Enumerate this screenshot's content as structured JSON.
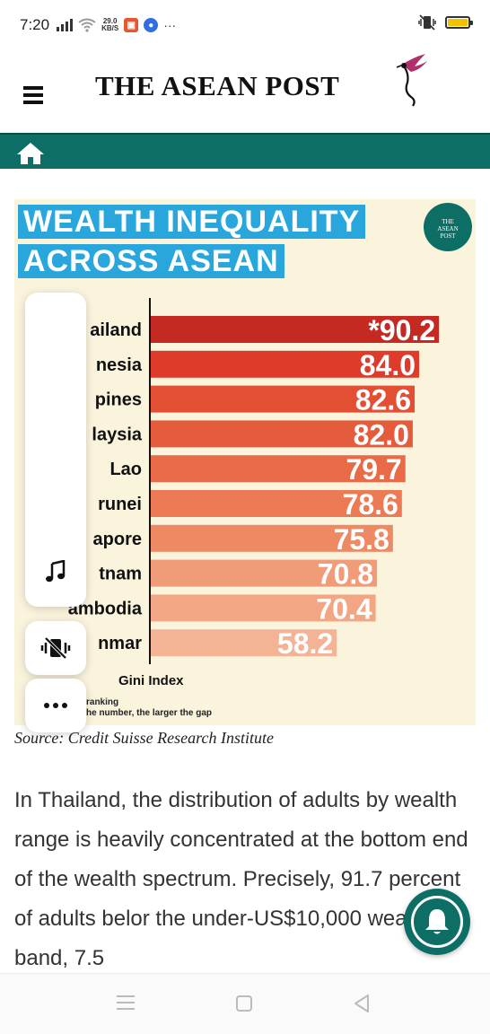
{
  "status_bar": {
    "time": "7:20",
    "network_speed": "29.0",
    "network_speed_unit": "KB/S",
    "more": "···"
  },
  "header": {
    "site_title": "THE ASEAN POST"
  },
  "infographic": {
    "title_line1": "WEALTH INEQUALITY",
    "title_line2": "ACROSS ASEAN",
    "badge_text": [
      "THE",
      "ASEAN",
      "POST"
    ],
    "axis_title": "Gini Index",
    "note_line1": "ranking",
    "note_line2": "he number, the larger the gap"
  },
  "chart_data": {
    "type": "bar",
    "orientation": "horizontal",
    "title": "WEALTH INEQUALITY ACROSS ASEAN",
    "xlabel": "Gini Index",
    "xlim": [
      0,
      100
    ],
    "categories": [
      "ailand",
      "nesia",
      "pines",
      "laysia",
      "Lao",
      "runei",
      "apore",
      "tnam",
      "ambodia",
      "nmar"
    ],
    "value_labels": [
      "*90.2",
      "84.0",
      "82.6",
      "82.0",
      "79.7",
      "78.6",
      "75.8",
      "70.8",
      "70.4",
      "58.2"
    ],
    "values": [
      90.2,
      84.0,
      82.6,
      82.0,
      79.7,
      78.6,
      75.8,
      70.8,
      70.4,
      58.2
    ],
    "colors": [
      "#c42a22",
      "#df3b2a",
      "#e24f33",
      "#e55c3c",
      "#e86a47",
      "#eb7a55",
      "#ed8963",
      "#f09c78",
      "#f2a683",
      "#f4b394"
    ]
  },
  "source": "Source: Credit Suisse Research Institute",
  "article": {
    "paragraph": "In Thailand, the distribution of adults by wealth range is heavily concentrated at the bottom end of the wealth spectrum. Precisely, 91.7 percent of adults belor the under-US$10,000 wealth band, 7.5"
  },
  "icons": {
    "menu": "hamburger-icon",
    "home": "home-icon",
    "music": "music-note-icon",
    "vibrate": "vibrate-off-icon",
    "more": "more-dots-icon",
    "bell": "bell-icon"
  },
  "colors": {
    "teal": "#0d6e66",
    "title_blue": "#29a7dc",
    "infographic_bg": "#fbf4dd"
  }
}
